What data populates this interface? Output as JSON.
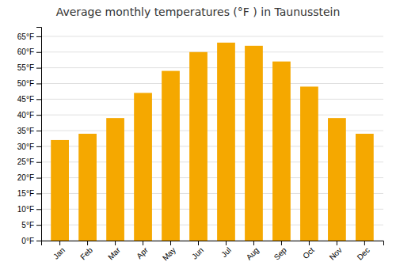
{
  "chart_data": {
    "type": "bar",
    "title": "Average monthly temperatures (°F ) in Taunusstein",
    "categories": [
      "Jan",
      "Feb",
      "Mar",
      "Apr",
      "May",
      "Jun",
      "Jul",
      "Aug",
      "Sep",
      "Oct",
      "Nov",
      "Dec"
    ],
    "values": [
      32,
      34,
      39,
      47,
      54,
      60,
      63,
      62,
      57,
      49,
      39,
      34
    ],
    "color": "#F5A800",
    "ylim": [
      0,
      68
    ],
    "yticks": [
      {
        "value": 0,
        "label": "0°F"
      },
      {
        "value": 5,
        "label": "5°F"
      },
      {
        "value": 10,
        "label": "10°F"
      },
      {
        "value": 15,
        "label": "15°F"
      },
      {
        "value": 20,
        "label": "20°F"
      },
      {
        "value": 25,
        "label": "25°F"
      },
      {
        "value": 30,
        "label": "30°F"
      },
      {
        "value": 35,
        "label": "35°F"
      },
      {
        "value": 40,
        "label": "40°F"
      },
      {
        "value": 45,
        "label": "45°F"
      },
      {
        "value": 50,
        "label": "50°F"
      },
      {
        "value": 55,
        "label": "55°F"
      },
      {
        "value": 60,
        "label": "60°F"
      },
      {
        "value": 65,
        "label": "65°F"
      }
    ],
    "grid": true
  }
}
